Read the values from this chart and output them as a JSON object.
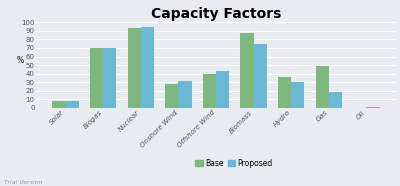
{
  "title": "Capacity Factors",
  "ylabel": "%",
  "categories": [
    "Solar",
    "Biogas",
    "Nuclear",
    "Onshore Wind",
    "Offshore Wind",
    "Biomass",
    "Hydro",
    "Gas",
    "Oil"
  ],
  "base": [
    8,
    70,
    93,
    28,
    40,
    88,
    36,
    49,
    0
  ],
  "proposed": [
    8,
    70,
    95,
    32,
    43,
    75,
    30,
    18,
    1
  ],
  "base_color": "#7EB87E",
  "proposed_color": "#6BB8D4",
  "background_color": "#E8ECF0",
  "ylim": [
    0,
    100
  ],
  "yticks": [
    0,
    10,
    20,
    30,
    40,
    50,
    60,
    70,
    80,
    90,
    100
  ],
  "title_fontsize": 10,
  "axis_label_fontsize": 5.5,
  "tick_fontsize": 5.0,
  "legend_fontsize": 5.5,
  "bar_width": 0.35,
  "grid_color": "#FFFFFF",
  "watermark": "Trial Version"
}
